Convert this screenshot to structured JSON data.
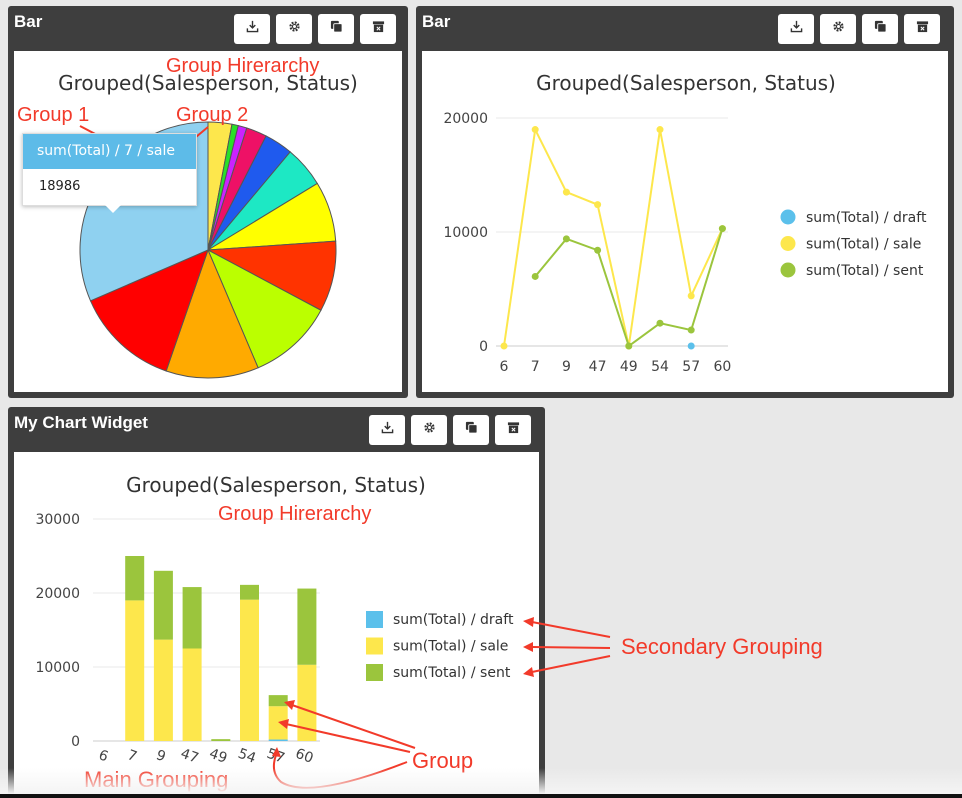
{
  "widgets": {
    "pie": {
      "title": "Bar"
    },
    "line": {
      "title": "Bar"
    },
    "bar": {
      "title": "My Chart Widget"
    }
  },
  "toolbar_icons": [
    "download-icon",
    "gear-icon",
    "duplicate-icon",
    "archive-icon"
  ],
  "tooltip": {
    "label": "sum(Total) / 7 / sale",
    "value": "18986"
  },
  "annotations": {
    "group_hierarchy": "Group Hirerarchy",
    "group1": "Group 1",
    "group2": "Group 2",
    "secondary": "Secondary Grouping",
    "group": "Group",
    "main": "Main Grouping"
  },
  "colors": {
    "draft": "#5bc0eb",
    "sale": "#fde74c",
    "sent": "#9bc53d",
    "annotation": "#f23a2a"
  },
  "chart_data": [
    {
      "type": "pie",
      "title": "Grouped(Salesperson, Status)",
      "slices": [
        {
          "color": "#fde74c",
          "value": 3
        },
        {
          "color": "#29e029",
          "value": 0.8
        },
        {
          "color": "#cc22ff",
          "value": 1.1
        },
        {
          "color": "#ee1166",
          "value": 2.6
        },
        {
          "color": "#1f5aee",
          "value": 3.6
        },
        {
          "color": "#1de8c4",
          "value": 5.2
        },
        {
          "color": "#ffff00",
          "value": 7.6
        },
        {
          "color": "#ff3300",
          "value": 8.9
        },
        {
          "color": "#bbff00",
          "value": 10.8
        },
        {
          "color": "#ffaa00",
          "value": 11.7
        },
        {
          "color": "#ff0000",
          "value": 13.2
        },
        {
          "color": "#8fd1f0",
          "value": 31.5
        }
      ]
    },
    {
      "type": "line",
      "title": "Grouped(Salesperson, Status)",
      "categories": [
        "6",
        "7",
        "9",
        "47",
        "49",
        "54",
        "57",
        "60"
      ],
      "ylim": [
        0,
        20000
      ],
      "yticks": [
        "0",
        "10000",
        "20000"
      ],
      "series": [
        {
          "name": "sum(Total) / draft",
          "color": "#5bc0eb",
          "values": [
            null,
            null,
            null,
            null,
            null,
            null,
            0,
            null
          ]
        },
        {
          "name": "sum(Total) / sale",
          "color": "#fde74c",
          "values": [
            0,
            18986,
            13500,
            12400,
            0,
            18986,
            4400,
            10300
          ]
        },
        {
          "name": "sum(Total) / sent",
          "color": "#9bc53d",
          "values": [
            null,
            6100,
            9400,
            8400,
            0,
            2000,
            1400,
            10300
          ]
        }
      ],
      "legend": "right"
    },
    {
      "type": "bar",
      "stacked": true,
      "title": "Grouped(Salesperson, Status)",
      "categories": [
        "6",
        "7",
        "9",
        "47",
        "49",
        "54",
        "57",
        "60"
      ],
      "ylim": [
        0,
        30000
      ],
      "yticks": [
        "0",
        "10000",
        "20000",
        "30000"
      ],
      "series": [
        {
          "name": "sum(Total) / draft",
          "color": "#5bc0eb",
          "values": [
            0,
            0,
            0,
            0,
            0,
            0,
            200,
            0
          ]
        },
        {
          "name": "sum(Total) / sale",
          "color": "#fde74c",
          "values": [
            0,
            19000,
            13700,
            12500,
            0,
            19100,
            4500,
            10300
          ]
        },
        {
          "name": "sum(Total) / sent",
          "color": "#9bc53d",
          "values": [
            0,
            6000,
            9300,
            8300,
            250,
            2000,
            1500,
            10300
          ]
        }
      ],
      "legend": "right"
    }
  ]
}
